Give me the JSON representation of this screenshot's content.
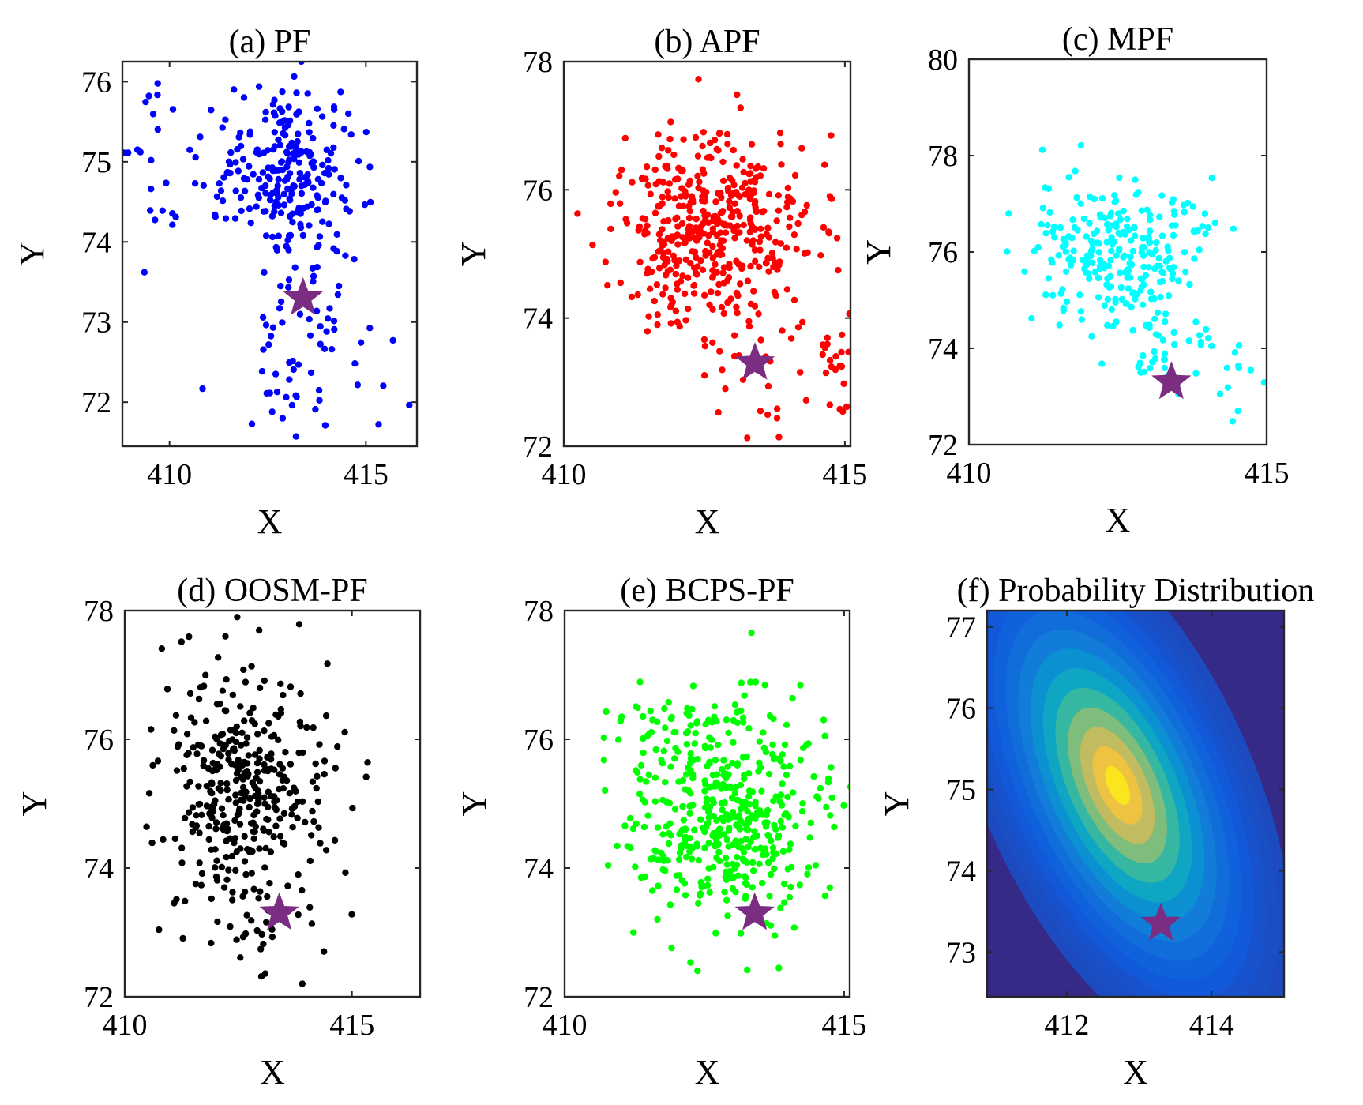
{
  "figure": {
    "marker_name": "star",
    "marker_color": "#7B2D82"
  },
  "chart_data": [
    {
      "id": "a",
      "type": "scatter",
      "title": "(a) PF",
      "xlabel": "X",
      "ylabel": "Y",
      "xlim": [
        408.8,
        416.3
      ],
      "ylim": [
        71.45,
        76.25
      ],
      "xticks": [
        410,
        415
      ],
      "yticks": [
        72,
        73,
        74,
        75,
        76
      ],
      "color": "#0000FF",
      "n_points": 330,
      "point_distribution": {
        "clusters": [
          {
            "mean": [
              413.0,
              74.85
            ],
            "sd": [
              0.9,
              0.55
            ],
            "weight": 0.72
          },
          {
            "mean": [
              413.3,
              72.9
            ],
            "sd": [
              0.8,
              0.75
            ],
            "weight": 0.18
          },
          {
            "mean": [
              409.5,
              74.9
            ],
            "sd": [
              0.45,
              0.5
            ],
            "weight": 0.07
          },
          {
            "mean": [
              415.0,
              72.6
            ],
            "sd": [
              0.9,
              0.5
            ],
            "weight": 0.03
          }
        ]
      },
      "true_position": [
        413.4,
        73.3
      ]
    },
    {
      "id": "b",
      "type": "scatter",
      "title": "(b) APF",
      "xlabel": "X",
      "ylabel": "Y",
      "xlim": [
        410,
        415.1
      ],
      "ylim": [
        72,
        78
      ],
      "xticks": [
        410,
        415
      ],
      "yticks": [
        72,
        74,
        76,
        78
      ],
      "color": "#FF0000",
      "n_points": 480,
      "point_distribution": {
        "clusters": [
          {
            "mean": [
              412.7,
              75.4
            ],
            "sd": [
              0.85,
              0.75
            ],
            "weight": 0.9
          },
          {
            "mean": [
              413.6,
              73.1
            ],
            "sd": [
              0.6,
              0.5
            ],
            "weight": 0.07
          },
          {
            "mean": [
              414.8,
              73.2
            ],
            "sd": [
              0.2,
              0.3
            ],
            "weight": 0.03
          }
        ]
      },
      "true_position": [
        413.4,
        73.3
      ]
    },
    {
      "id": "c",
      "type": "scatter",
      "title": "(c) MPF",
      "xlabel": "X",
      "ylabel": "Y",
      "xlim": [
        410,
        415
      ],
      "ylim": [
        72,
        80
      ],
      "xticks": [
        410,
        415
      ],
      "yticks": [
        72,
        74,
        76,
        78,
        80
      ],
      "color": "#00FFFF",
      "n_points": 300,
      "point_distribution": {
        "clusters": [
          {
            "mean": [
              412.5,
              76.0
            ],
            "sd": [
              0.75,
              0.75
            ],
            "weight": 0.85
          },
          {
            "mean": [
              413.0,
              74.0
            ],
            "sd": [
              0.6,
              0.45
            ],
            "weight": 0.12
          },
          {
            "mean": [
              414.4,
              73.5
            ],
            "sd": [
              0.3,
              0.5
            ],
            "weight": 0.03
          }
        ]
      },
      "true_position": [
        413.4,
        73.3
      ]
    },
    {
      "id": "d",
      "type": "scatter",
      "title": "(d) OOSM-PF",
      "xlabel": "X",
      "ylabel": "Y",
      "xlim": [
        410,
        416.5
      ],
      "ylim": [
        72,
        78
      ],
      "xticks": [
        410,
        415
      ],
      "yticks": [
        72,
        74,
        76,
        78
      ],
      "color": "#000000",
      "n_points": 380,
      "point_distribution": {
        "clusters": [
          {
            "mean": [
              412.7,
              75.3
            ],
            "sd": [
              0.95,
              0.85
            ],
            "weight": 0.92
          },
          {
            "mean": [
              413.0,
              73.2
            ],
            "sd": [
              0.9,
              0.5
            ],
            "weight": 0.08
          }
        ]
      },
      "true_position": [
        413.4,
        73.3
      ]
    },
    {
      "id": "e",
      "type": "scatter",
      "title": "(e) BCPS-PF",
      "xlabel": "X",
      "ylabel": "Y",
      "xlim": [
        410,
        415.1
      ],
      "ylim": [
        72,
        78
      ],
      "xticks": [
        410,
        415
      ],
      "yticks": [
        72,
        74,
        76,
        78
      ],
      "color": "#00FF00",
      "n_points": 480,
      "point_distribution": {
        "clusters": [
          {
            "mean": [
              412.9,
              74.8
            ],
            "sd": [
              0.9,
              0.85
            ],
            "weight": 0.92
          },
          {
            "mean": [
              411.8,
              76.3
            ],
            "sd": [
              0.6,
              0.4
            ],
            "weight": 0.08
          }
        ]
      },
      "true_position": [
        413.4,
        73.3
      ]
    },
    {
      "id": "f",
      "type": "heatmap",
      "title": "(f) Probability Distribution",
      "xlabel": "X",
      "ylabel": "Y",
      "xlim": [
        410.9,
        415
      ],
      "ylim": [
        72.45,
        77.2
      ],
      "xticks": [
        412,
        414
      ],
      "yticks": [
        73,
        74,
        75,
        76,
        77
      ],
      "colormap": "parula",
      "gaussian": {
        "mean": [
          412.7,
          75.05
        ],
        "sd": [
          0.75,
          1.05
        ],
        "rho": -0.55
      },
      "contour_levels": 14,
      "true_position": [
        413.3,
        73.35
      ]
    }
  ]
}
